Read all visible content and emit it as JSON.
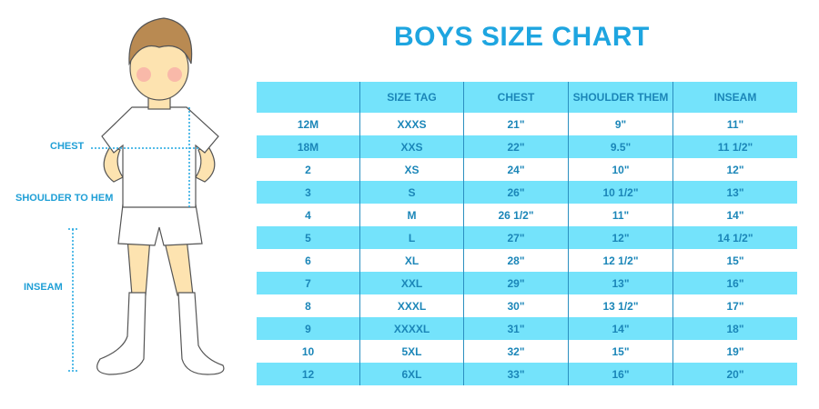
{
  "title": "BOYS SIZE CHART",
  "illustration_labels": {
    "chest": "CHEST",
    "shoulder_to_hem": "SHOULDER TO HEM",
    "inseam": "INSEAM"
  },
  "colors": {
    "accent": "#1ea5e0",
    "row_band": "#74e3fb",
    "text": "#1b86b8"
  },
  "table": {
    "headers": [
      "",
      "SIZE TAG",
      "CHEST",
      "SHOULDER THEM",
      "INSEAM"
    ],
    "rows": [
      [
        "12M",
        "XXXS",
        "21\"",
        "9\"",
        "11\""
      ],
      [
        "18M",
        "XXS",
        "22\"",
        "9.5\"",
        "11 1/2\""
      ],
      [
        "2",
        "XS",
        "24\"",
        "10\"",
        "12\""
      ],
      [
        "3",
        "S",
        "26\"",
        "10 1/2\"",
        "13\""
      ],
      [
        "4",
        "M",
        "26 1/2\"",
        "11\"",
        "14\""
      ],
      [
        "5",
        "L",
        "27\"",
        "12\"",
        "14 1/2\""
      ],
      [
        "6",
        "XL",
        "28\"",
        "12 1/2\"",
        "15\""
      ],
      [
        "7",
        "XXL",
        "29\"",
        "13\"",
        "16\""
      ],
      [
        "8",
        "XXXL",
        "30\"",
        "13 1/2\"",
        "17\""
      ],
      [
        "9",
        "XXXXL",
        "31\"",
        "14\"",
        "18\""
      ],
      [
        "10",
        "5XL",
        "32\"",
        "15\"",
        "19\""
      ],
      [
        "12",
        "6XL",
        "33\"",
        "16\"",
        "20\""
      ]
    ]
  }
}
